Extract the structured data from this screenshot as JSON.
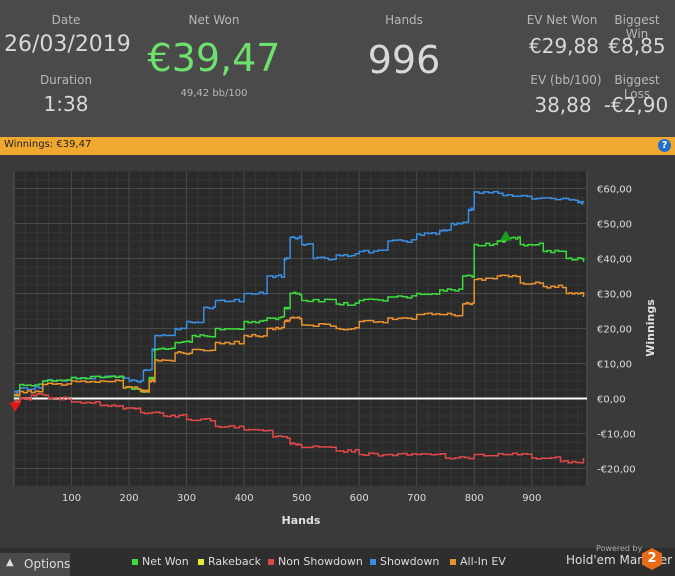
{
  "summary": {
    "date_label": "Date",
    "date_value": "26/03/2019",
    "duration_label": "Duration",
    "duration_value": "1:38",
    "netwon_label": "Net Won",
    "netwon_value": "€39,47",
    "netwon_sub": "49,42 bb/100",
    "hands_label": "Hands",
    "hands_value": "996",
    "evnet_label": "EV Net Won",
    "evnet_value": "€29,88",
    "bigwin_label": "Biggest Win",
    "bigwin_value": "€8,85",
    "evbb_label": "EV (bb/100)",
    "evbb_value": "38,88",
    "bigloss_label": "Biggest Loss",
    "bigloss_value": "-€2,90"
  },
  "winnings_bar": {
    "text": "Winnings: €39,47",
    "help": "?"
  },
  "colors": {
    "net_won": "#3ddc3d",
    "rakeback": "#e8e83a",
    "non_showdown": "#e04848",
    "showdown": "#3a8ee0",
    "allin_ev": "#e8922e",
    "accent": "#f0a830",
    "netwon_text": "#6ee06e"
  },
  "chart_data": {
    "type": "line",
    "xlabel": "Hands",
    "ylabel": "Winnings",
    "xlim": [
      0,
      996
    ],
    "ylim": [
      -25,
      65
    ],
    "x_ticks": [
      100,
      200,
      300,
      400,
      500,
      600,
      700,
      800,
      900
    ],
    "y_ticks": [
      {
        "v": 60,
        "label": "€60,00"
      },
      {
        "v": 50,
        "label": "€50,00"
      },
      {
        "v": 40,
        "label": "€40,00"
      },
      {
        "v": 30,
        "label": "€30,00"
      },
      {
        "v": 20,
        "label": "€20,00"
      },
      {
        "v": 10,
        "label": "€10,00"
      },
      {
        "v": 0,
        "label": "€0,00"
      },
      {
        "v": -10,
        "label": "-€10,00"
      },
      {
        "v": -20,
        "label": "-€20,00"
      }
    ],
    "series": [
      {
        "name": "Showdown",
        "color": "#3a8ee0",
        "points": [
          [
            0,
            2
          ],
          [
            10,
            3
          ],
          [
            50,
            5
          ],
          [
            100,
            6
          ],
          [
            150,
            6
          ],
          [
            200,
            5
          ],
          [
            225,
            8
          ],
          [
            240,
            14
          ],
          [
            245,
            18
          ],
          [
            280,
            20
          ],
          [
            300,
            22
          ],
          [
            330,
            26
          ],
          [
            350,
            28
          ],
          [
            400,
            30
          ],
          [
            440,
            35
          ],
          [
            470,
            40
          ],
          [
            480,
            46
          ],
          [
            500,
            44
          ],
          [
            520,
            40
          ],
          [
            560,
            41
          ],
          [
            600,
            42
          ],
          [
            650,
            45
          ],
          [
            700,
            47
          ],
          [
            740,
            48
          ],
          [
            760,
            50
          ],
          [
            790,
            54
          ],
          [
            800,
            59
          ],
          [
            850,
            58
          ],
          [
            900,
            57
          ],
          [
            950,
            57
          ],
          [
            980,
            56
          ],
          [
            990,
            56
          ]
        ]
      },
      {
        "name": "Net Won",
        "color": "#3ddc3d",
        "points": [
          [
            0,
            1
          ],
          [
            10,
            4
          ],
          [
            50,
            5
          ],
          [
            100,
            6
          ],
          [
            150,
            6
          ],
          [
            190,
            3
          ],
          [
            220,
            2
          ],
          [
            235,
            6
          ],
          [
            245,
            14
          ],
          [
            280,
            16
          ],
          [
            310,
            18
          ],
          [
            350,
            20
          ],
          [
            400,
            22
          ],
          [
            440,
            23
          ],
          [
            470,
            26
          ],
          [
            480,
            30
          ],
          [
            500,
            28
          ],
          [
            560,
            27
          ],
          [
            600,
            28
          ],
          [
            650,
            29
          ],
          [
            700,
            30
          ],
          [
            740,
            31
          ],
          [
            780,
            35
          ],
          [
            800,
            44
          ],
          [
            840,
            45
          ],
          [
            855,
            46
          ],
          [
            880,
            44
          ],
          [
            920,
            42
          ],
          [
            960,
            40
          ],
          [
            990,
            39
          ]
        ]
      },
      {
        "name": "All-In EV",
        "color": "#e8922e",
        "points": [
          [
            0,
            1
          ],
          [
            10,
            2
          ],
          [
            50,
            4
          ],
          [
            100,
            5
          ],
          [
            150,
            5
          ],
          [
            190,
            3
          ],
          [
            220,
            2
          ],
          [
            235,
            5
          ],
          [
            245,
            11
          ],
          [
            280,
            13
          ],
          [
            310,
            14
          ],
          [
            350,
            16
          ],
          [
            400,
            18
          ],
          [
            440,
            20
          ],
          [
            470,
            22
          ],
          [
            480,
            23
          ],
          [
            500,
            21
          ],
          [
            560,
            20
          ],
          [
            600,
            22
          ],
          [
            650,
            23
          ],
          [
            700,
            24
          ],
          [
            740,
            24
          ],
          [
            780,
            27
          ],
          [
            800,
            34
          ],
          [
            840,
            35
          ],
          [
            880,
            33
          ],
          [
            920,
            32
          ],
          [
            960,
            30
          ],
          [
            990,
            29
          ]
        ]
      },
      {
        "name": "Non Showdown",
        "color": "#e04848",
        "points": [
          [
            0,
            -1
          ],
          [
            10,
            0
          ],
          [
            30,
            1
          ],
          [
            60,
            0
          ],
          [
            100,
            -1
          ],
          [
            150,
            -2
          ],
          [
            190,
            -3
          ],
          [
            220,
            -4
          ],
          [
            260,
            -5
          ],
          [
            300,
            -6
          ],
          [
            350,
            -8
          ],
          [
            400,
            -9
          ],
          [
            450,
            -11
          ],
          [
            480,
            -13
          ],
          [
            500,
            -14
          ],
          [
            560,
            -15
          ],
          [
            600,
            -16
          ],
          [
            650,
            -16
          ],
          [
            700,
            -16
          ],
          [
            750,
            -17
          ],
          [
            800,
            -16
          ],
          [
            850,
            -16
          ],
          [
            900,
            -17
          ],
          [
            950,
            -18
          ],
          [
            990,
            -17
          ]
        ]
      }
    ],
    "markers": [
      {
        "type": "max",
        "x": 855,
        "y": 46,
        "color": "#1e9e1e"
      },
      {
        "type": "min",
        "x": 2,
        "y": -2,
        "color": "#e01818"
      }
    ],
    "legend": [
      {
        "name": "Net Won",
        "color": "#3ddc3d"
      },
      {
        "name": "Rakeback",
        "color": "#e8e83a"
      },
      {
        "name": "Non Showdown",
        "color": "#e04848"
      },
      {
        "name": "Showdown",
        "color": "#3a8ee0"
      },
      {
        "name": "All-In EV",
        "color": "#e8922e"
      }
    ]
  },
  "footer": {
    "options_label": "Options",
    "options_arrow": "▲",
    "powered": "Powered by",
    "brand": "Hold'em Manager",
    "logo": "2"
  }
}
